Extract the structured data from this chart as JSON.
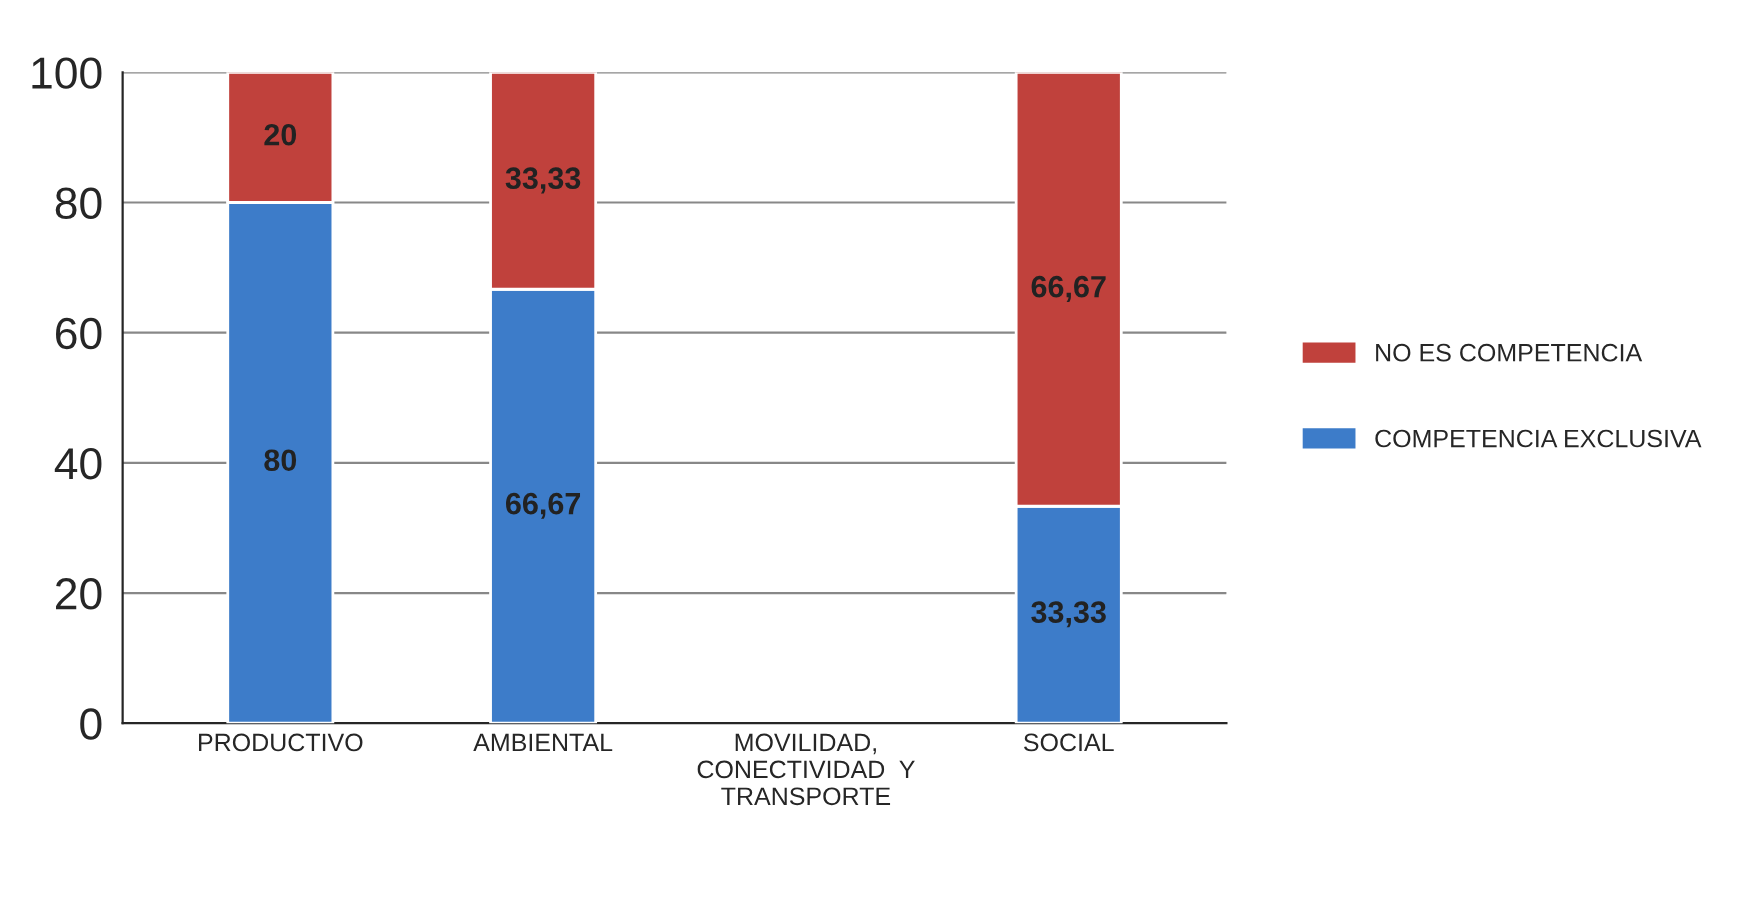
{
  "chart_data": {
    "type": "bar",
    "stacked": true,
    "categories": [
      "PRODUCTIVO",
      "AMBIENTAL",
      "MOVILIDAD,\nCONECTIVIDAD  Y\nTRANSPORTE",
      "SOCIAL"
    ],
    "series": [
      {
        "name": "COMPETENCIA EXCLUSIVA",
        "color": "#3d7cc9",
        "values": [
          80,
          66.67,
          null,
          33.33
        ],
        "value_labels": [
          "80",
          "66,67",
          null,
          "33,33"
        ]
      },
      {
        "name": "NO ES COMPETENCIA",
        "color": "#c0413c",
        "values": [
          20,
          33.33,
          null,
          66.67
        ],
        "value_labels": [
          "20",
          "33,33",
          null,
          "66,67"
        ]
      }
    ],
    "ylim": [
      0,
      100
    ],
    "yticks": [
      0,
      20,
      40,
      60,
      80,
      100
    ],
    "grid": "y",
    "legend": "right"
  }
}
